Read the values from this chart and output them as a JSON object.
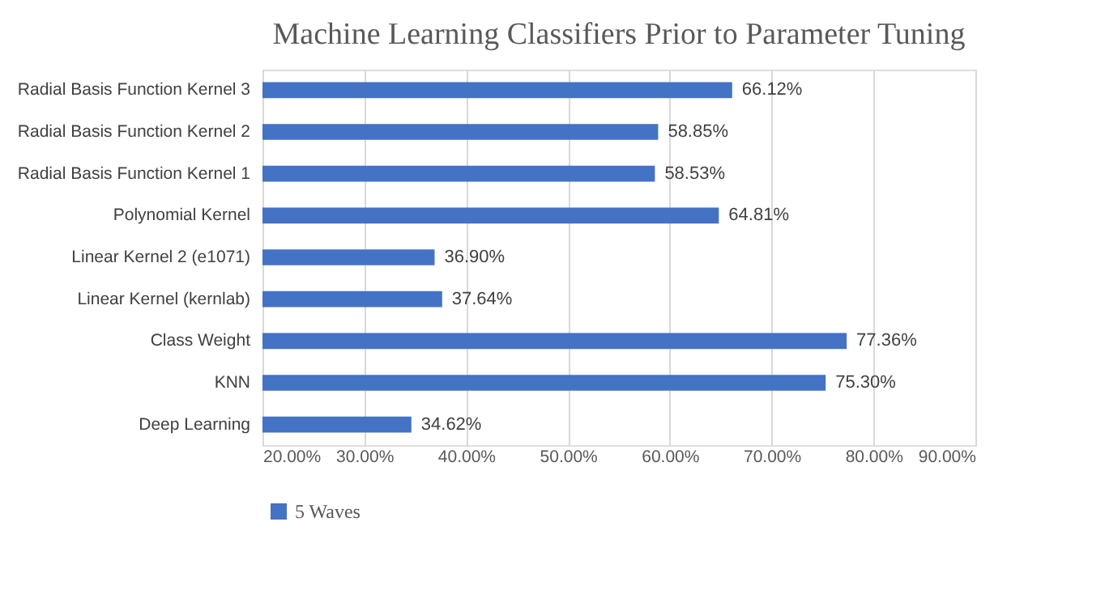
{
  "chart_data": {
    "type": "bar",
    "orientation": "horizontal",
    "title": "Machine Learning Classifiers Prior to Parameter Tuning",
    "categories": [
      "Radial Basis Function Kernel 3",
      "Radial Basis Function Kernel 2",
      "Radial Basis Function Kernel 1",
      "Polynomial Kernel",
      "Linear Kernel 2 (e1071)",
      "Linear Kernel (kernlab)",
      "Class Weight",
      "KNN",
      "Deep Learning"
    ],
    "series": [
      {
        "name": "5 Waves",
        "color": "#4472c4",
        "values": [
          66.12,
          58.85,
          58.53,
          64.81,
          36.9,
          37.64,
          77.36,
          75.3,
          34.62
        ],
        "value_labels": [
          "66.12%",
          "58.85%",
          "58.53%",
          "64.81%",
          "36.90%",
          "37.64%",
          "77.36%",
          "75.30%",
          "34.62%"
        ]
      }
    ],
    "xlim": [
      20,
      90
    ],
    "xticks": [
      {
        "value": 20,
        "label": "20.00%"
      },
      {
        "value": 30,
        "label": "30.00%"
      },
      {
        "value": 40,
        "label": "40.00%"
      },
      {
        "value": 50,
        "label": "50.00%"
      },
      {
        "value": 60,
        "label": "60.00%"
      },
      {
        "value": 70,
        "label": "70.00%"
      },
      {
        "value": 80,
        "label": "80.00%"
      },
      {
        "value": 90,
        "label": "90.00%"
      }
    ],
    "grid": "x",
    "legend": "bottom"
  }
}
